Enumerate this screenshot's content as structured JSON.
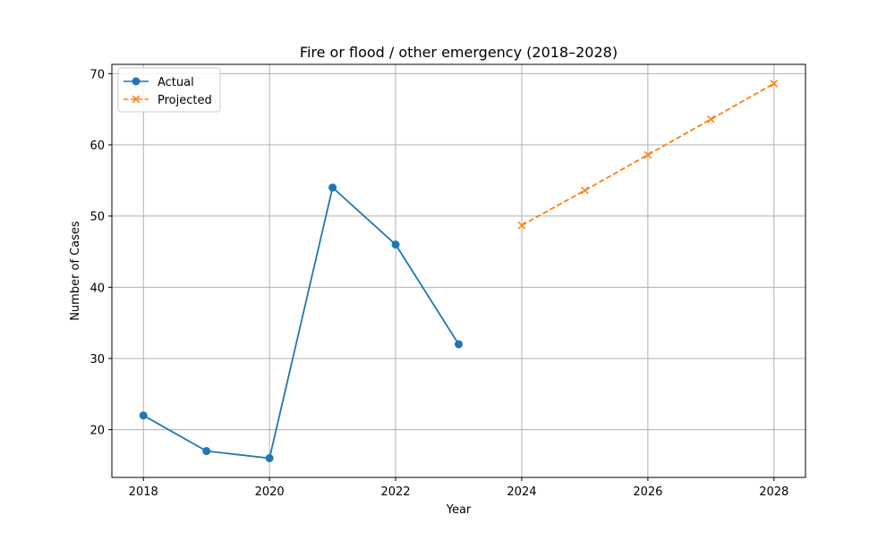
{
  "colors": {
    "actual": "#1f77b4",
    "projected": "#ff7f0e",
    "grid": "#b0b0b0",
    "axis": "#000000"
  },
  "chart_data": {
    "type": "line",
    "title": "Fire or flood / other emergency (2018–2028)",
    "xlabel": "Year",
    "ylabel": "Number of Cases",
    "xlim": [
      2017.5,
      2028.5
    ],
    "ylim": [
      13.3,
      71.3
    ],
    "xticks": [
      2018,
      2020,
      2022,
      2024,
      2026,
      2028
    ],
    "yticks": [
      20,
      30,
      40,
      50,
      60,
      70
    ],
    "grid": true,
    "legend_position": "top-left",
    "series": [
      {
        "name": "Actual",
        "style": "solid",
        "marker": "circle",
        "x": [
          2018,
          2019,
          2020,
          2021,
          2022,
          2023
        ],
        "y": [
          22,
          17,
          16,
          54,
          46,
          32
        ]
      },
      {
        "name": "Projected",
        "style": "dashed",
        "marker": "x",
        "x": [
          2024,
          2025,
          2026,
          2027,
          2028
        ],
        "y": [
          48.7,
          53.6,
          58.6,
          63.6,
          68.6
        ]
      }
    ]
  }
}
